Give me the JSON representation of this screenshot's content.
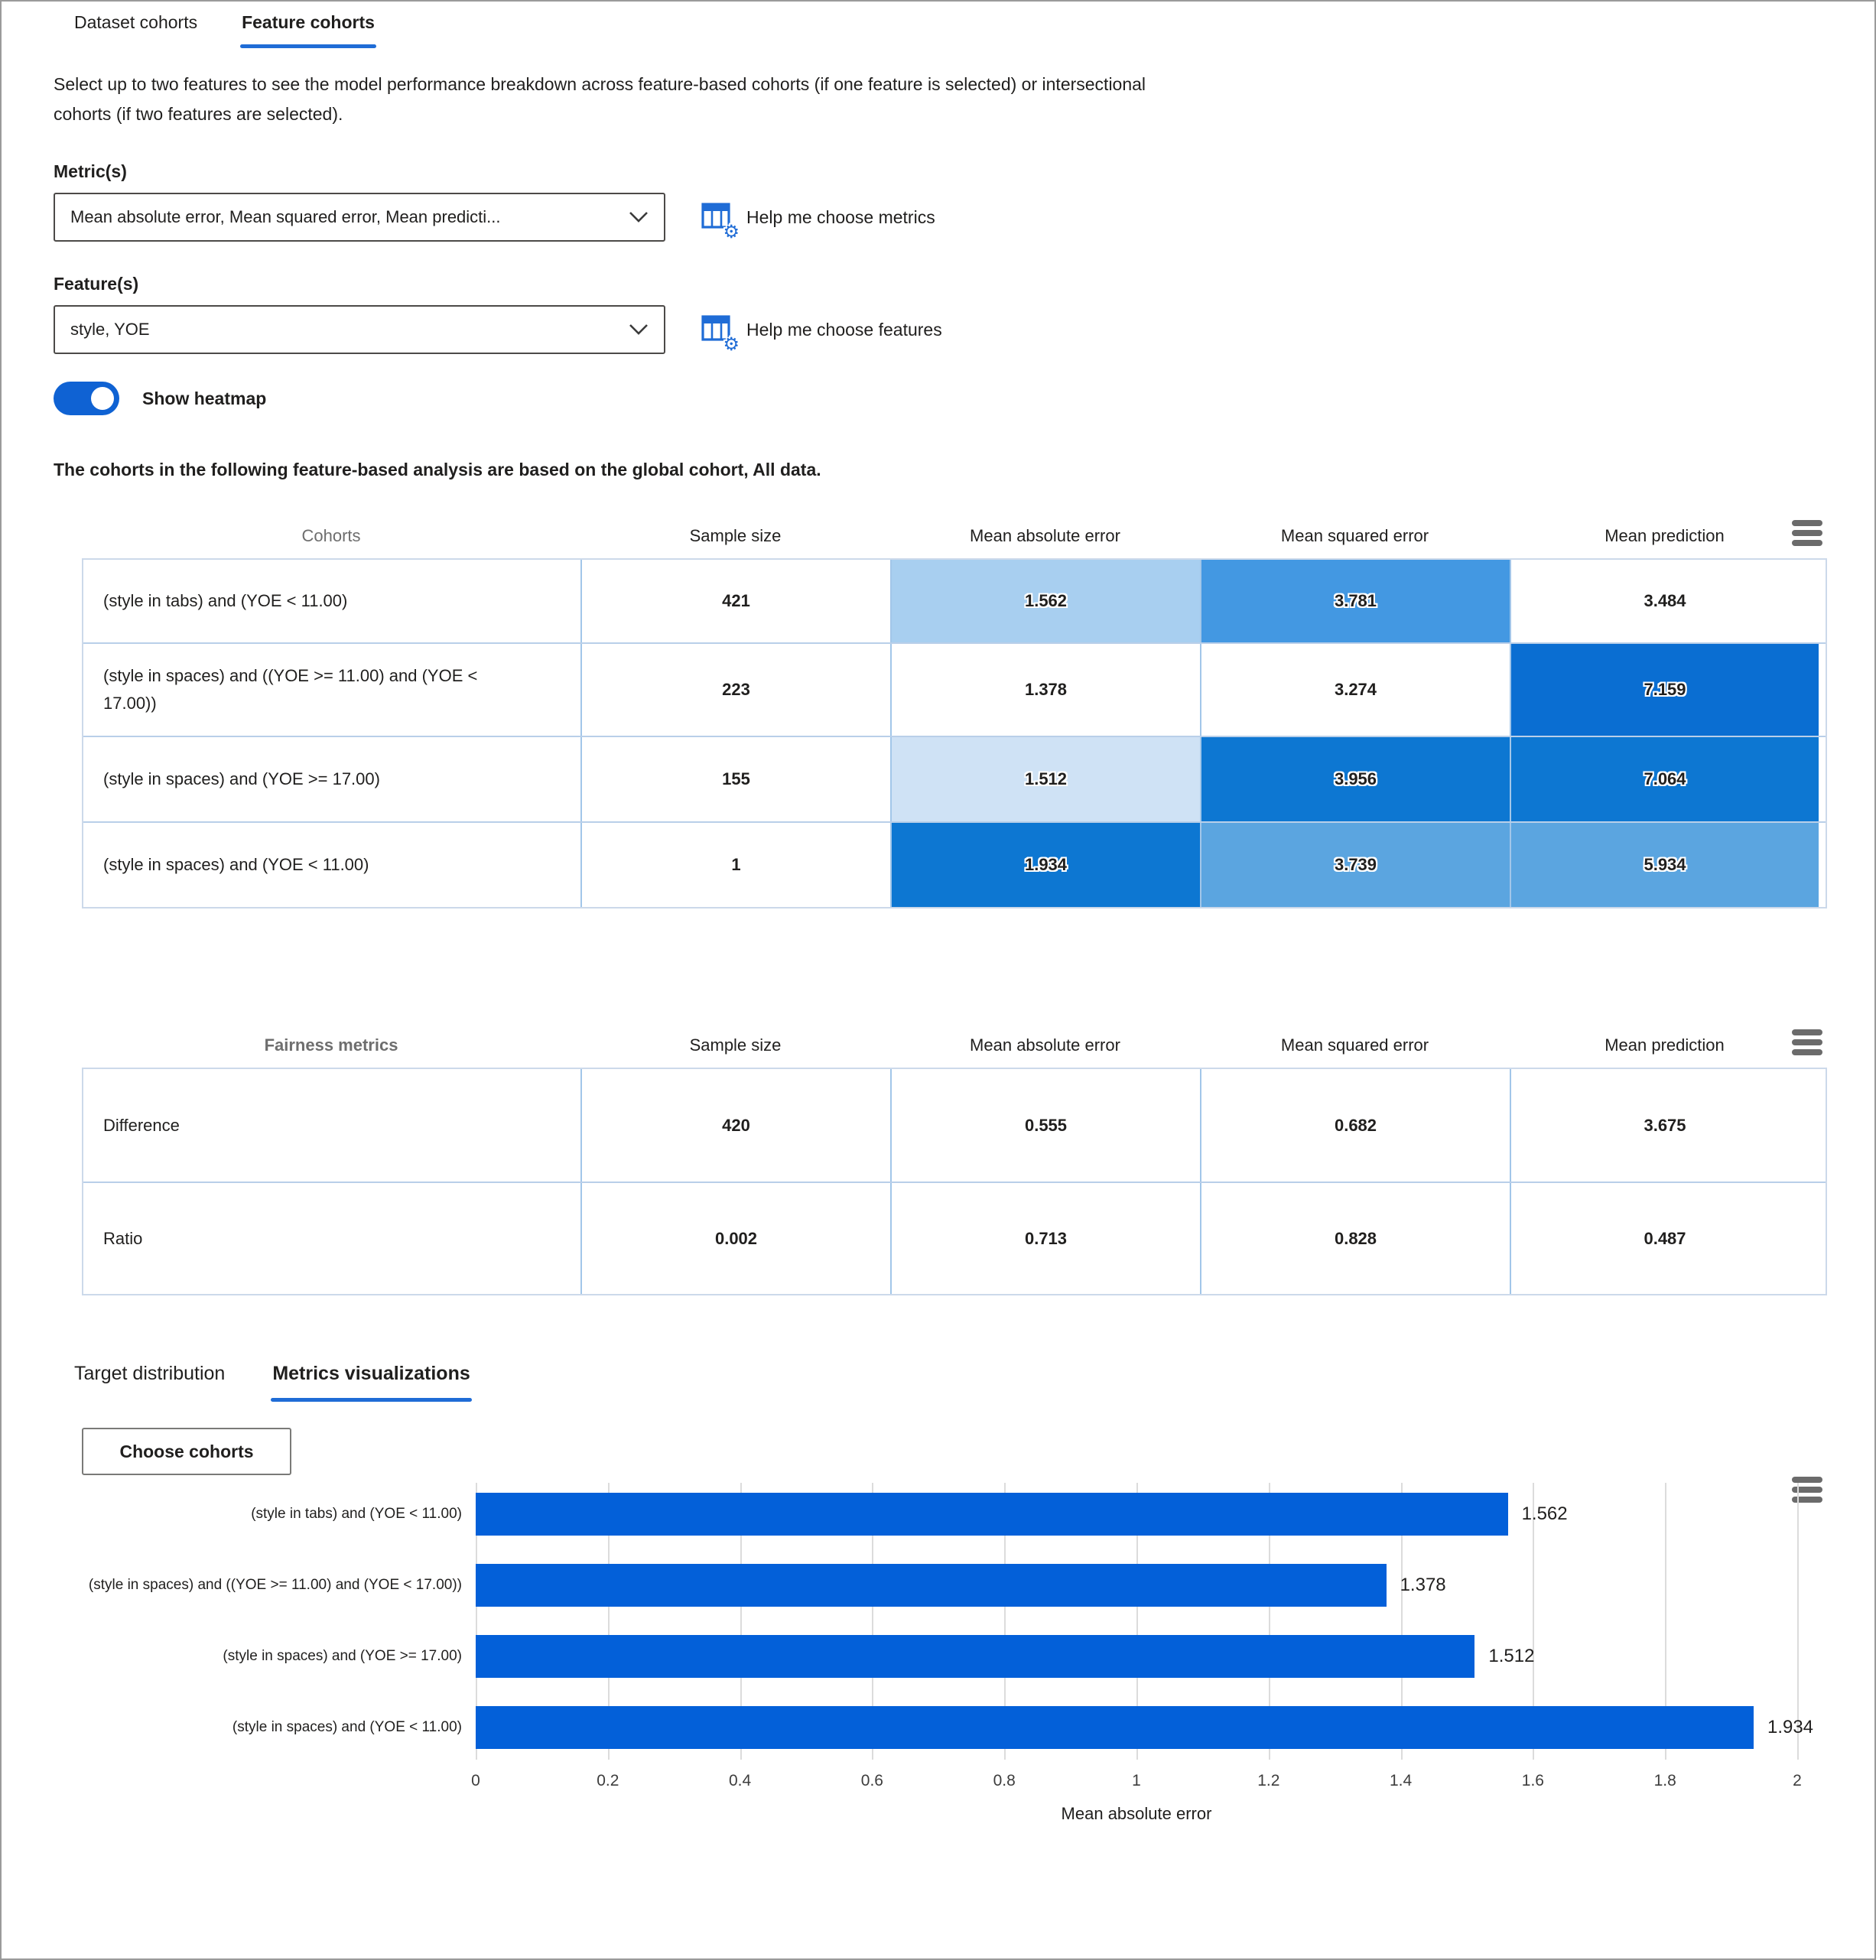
{
  "page": {
    "accent": "#1f6cd6",
    "toggle_color": "#0f62d3",
    "text_color": "#201f1e"
  },
  "top_tabs": [
    {
      "label": "Dataset cohorts",
      "selected": false
    },
    {
      "label": "Feature cohorts",
      "selected": true
    }
  ],
  "description": "Select up to two features to see the model performance breakdown across feature-based cohorts (if one feature is selected) or intersectional cohorts (if two features are selected).",
  "metrics_field": {
    "label": "Metric(s)",
    "value": "Mean absolute error, Mean squared error, Mean predicti...",
    "help_label": "Help me choose metrics"
  },
  "features_field": {
    "label": "Feature(s)",
    "value": "style, YOE",
    "help_label": "Help me choose features"
  },
  "heatmap_toggle": {
    "label": "Show heatmap",
    "state": "on"
  },
  "global_cohort_note": "The cohorts in the following feature-based analysis are based on the global cohort, All data.",
  "cohort_table": {
    "headers": [
      "Cohorts",
      "Sample size",
      "Mean absolute error",
      "Mean squared error",
      "Mean prediction"
    ],
    "rows": [
      {
        "cohort": "(style in tabs) and (YOE < 11.00)",
        "sample": "421",
        "mae": {
          "v": "1.562",
          "bg": "#a8cff0"
        },
        "mse": {
          "v": "3.781",
          "bg": "#4398e2"
        },
        "mp": {
          "v": "3.484",
          "bg": "#ffffff"
        }
      },
      {
        "cohort": "(style in spaces) and ((YOE >= 11.00) and (YOE < 17.00))",
        "sample": "223",
        "mae": {
          "v": "1.378",
          "bg": "#ffffff"
        },
        "mse": {
          "v": "3.274",
          "bg": "#ffffff"
        },
        "mp": {
          "v": "7.159",
          "bg": "#0a6ed2"
        }
      },
      {
        "cohort": "(style in spaces) and (YOE >= 17.00)",
        "sample": "155",
        "mae": {
          "v": "1.512",
          "bg": "#cfe2f5"
        },
        "mse": {
          "v": "3.956",
          "bg": "#0d77d2"
        },
        "mp": {
          "v": "7.064",
          "bg": "#0d77d2"
        }
      },
      {
        "cohort": "(style in spaces) and (YOE < 11.00)",
        "sample": "1",
        "mae": {
          "v": "1.934",
          "bg": "#0d77d2"
        },
        "mse": {
          "v": "3.739",
          "bg": "#5ba5e0"
        },
        "mp": {
          "v": "5.934",
          "bg": "#5ba5e0"
        }
      }
    ]
  },
  "fairness_table": {
    "headers": [
      "Fairness metrics",
      "Sample size",
      "Mean absolute error",
      "Mean squared error",
      "Mean prediction"
    ],
    "rows": [
      {
        "label": "Difference",
        "sample": "420",
        "mae": "0.555",
        "mse": "0.682",
        "mp": "3.675"
      },
      {
        "label": "Ratio",
        "sample": "0.002",
        "mae": "0.713",
        "mse": "0.828",
        "mp": "0.487"
      }
    ]
  },
  "viz_tabs": [
    {
      "label": "Target distribution",
      "selected": false
    },
    {
      "label": "Metrics visualizations",
      "selected": true
    }
  ],
  "choose_cohorts_button": "Choose cohorts",
  "chart_data": {
    "type": "bar",
    "orientation": "horizontal",
    "categories": [
      "(style in tabs) and (YOE < 11.00)",
      "(style in spaces) and ((YOE >= 11.00) and (YOE < 17.00))",
      "(style in spaces) and (YOE >= 17.00)",
      "(style in spaces) and (YOE < 11.00)"
    ],
    "values": [
      1.562,
      1.378,
      1.512,
      1.934
    ],
    "value_labels": [
      "1.562",
      "1.378",
      "1.512",
      "1.934"
    ],
    "xlabel": "Mean absolute error",
    "xlim": [
      0,
      2
    ],
    "xticks": [
      0,
      0.2,
      0.4,
      0.6,
      0.8,
      1,
      1.2,
      1.4,
      1.6,
      1.8,
      2
    ],
    "xtick_labels": [
      "0",
      "0.2",
      "0.4",
      "0.6",
      "0.8",
      "1",
      "1.2",
      "1.4",
      "1.6",
      "1.8",
      "2"
    ],
    "bar_color": "#0360d9",
    "grid": true,
    "legend": "none"
  }
}
